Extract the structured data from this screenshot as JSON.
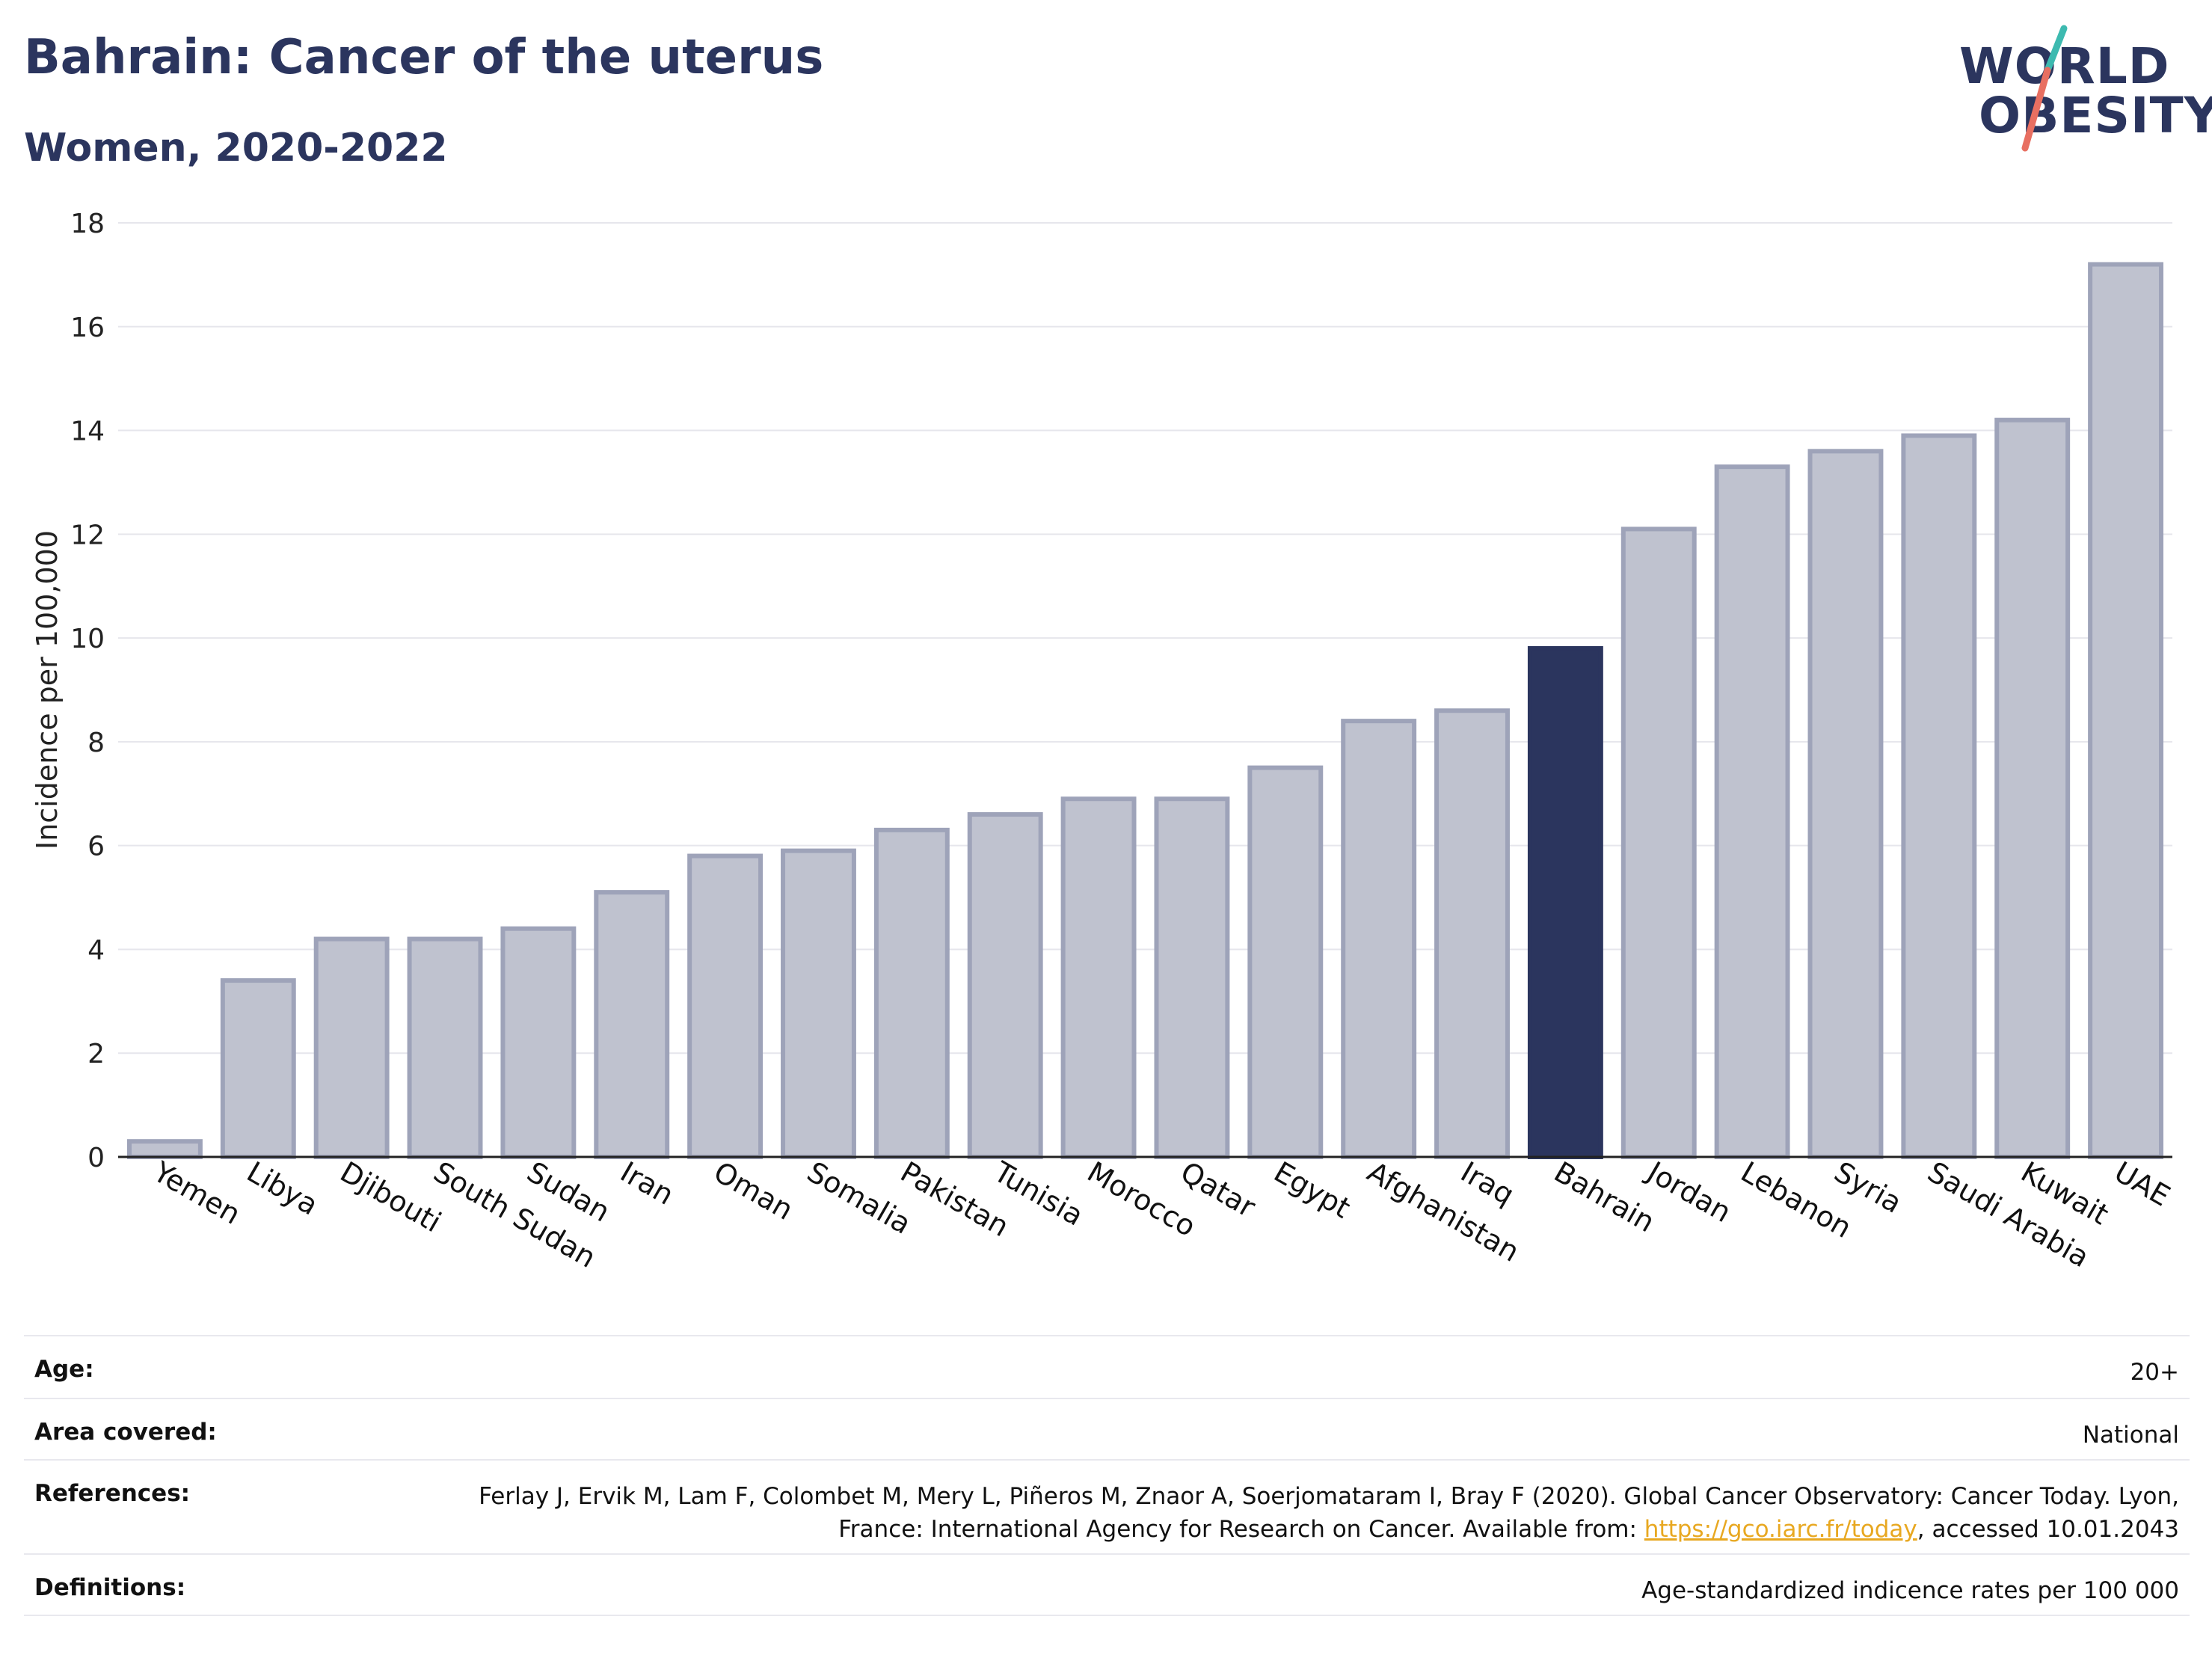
{
  "title": "Bahrain: Cancer of the uterus",
  "subtitle": "Women, 2020-2022",
  "logo": {
    "line1": "WORLD",
    "line2": "OBESITY"
  },
  "colors": {
    "highlight": "#2b355e",
    "bar_fill": "#bfc2cf",
    "bar_stroke": "#9ea3b9",
    "accent_teal": "#3dbab0",
    "accent_coral": "#e86f61",
    "link": "#e8a821"
  },
  "chart_data": {
    "type": "bar",
    "ylabel": "Incidence per 100,000",
    "xlabel": "",
    "ylim": [
      0,
      18
    ],
    "yticks": [
      0,
      2,
      4,
      6,
      8,
      10,
      12,
      14,
      16,
      18
    ],
    "grid": true,
    "highlight": "Bahrain",
    "categories": [
      "Yemen",
      "Libya",
      "Djibouti",
      "South Sudan",
      "Sudan",
      "Iran",
      "Oman",
      "Somalia",
      "Pakistan",
      "Tunisia",
      "Morocco",
      "Qatar",
      "Egypt",
      "Afghanistan",
      "Iraq",
      "Bahrain",
      "Jordan",
      "Lebanon",
      "Syria",
      "Saudi Arabia",
      "Kuwait",
      "UAE"
    ],
    "values": [
      0.3,
      3.4,
      4.2,
      4.2,
      4.4,
      5.1,
      5.8,
      5.9,
      6.3,
      6.6,
      6.9,
      6.9,
      7.5,
      8.4,
      8.6,
      9.8,
      12.1,
      13.3,
      13.6,
      13.9,
      14.2,
      17.2
    ]
  },
  "info": {
    "age_label": "Age:",
    "age_value": "20+",
    "area_label": "Area covered:",
    "area_value": "National",
    "references_label": "References:",
    "references_text1": "Ferlay J, Ervik M, Lam F, Colombet M, Mery L, Piñeros M, Znaor A, Soerjomataram I, Bray F (2020). Global Cancer Observatory: Cancer Today. Lyon, France: International Agency for Research on Cancer. Available from: ",
    "references_link": "https://gco.iarc.fr/today",
    "references_text2": ", accessed 10.01.2043",
    "definitions_label": "Definitions:",
    "definitions_value": "Age-standardized indicence rates per 100 000"
  }
}
